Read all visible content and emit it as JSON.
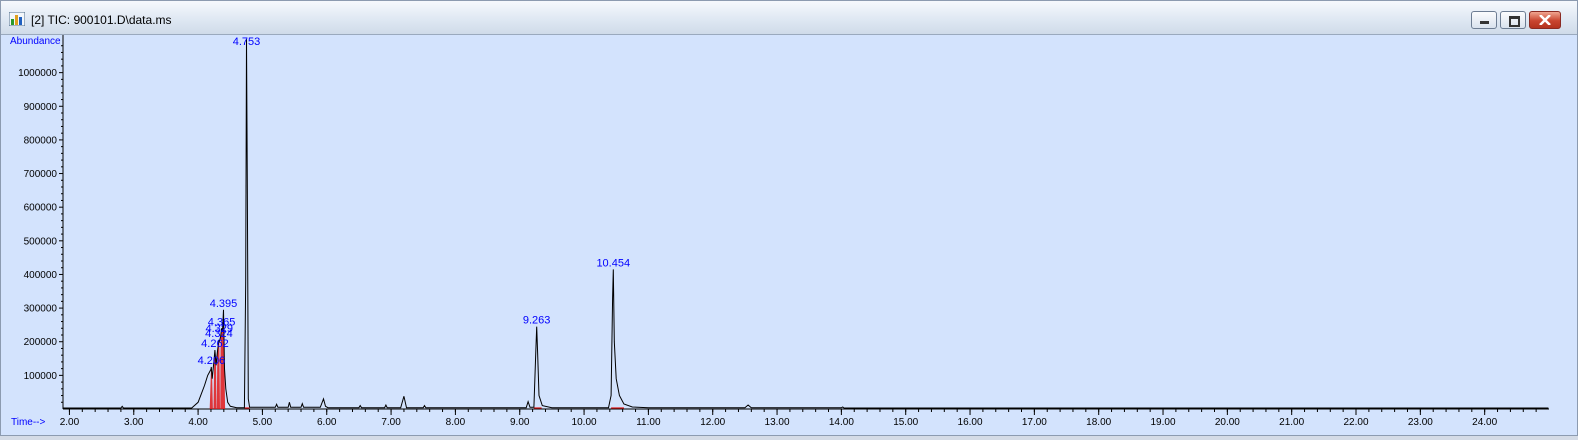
{
  "window": {
    "title": "[2] TIC: 900101.D\\data.ms",
    "icon": "chromatogram-app-icon",
    "controls": [
      "minimize-icon",
      "maximize-icon",
      "close-icon"
    ]
  },
  "colors": {
    "background": "#d3e3fd",
    "trace": "#000000",
    "axis": "#000000",
    "label": "#0000ff",
    "peak_fill": "#e01818"
  },
  "chart_data": {
    "type": "line",
    "ylabel": "Abundance",
    "xlabel": "Time-->",
    "xlim": [
      1.9,
      25.0
    ],
    "ylim": [
      0,
      1100000
    ],
    "x_ticks": [
      2.0,
      3.0,
      4.0,
      5.0,
      6.0,
      7.0,
      8.0,
      9.0,
      10.0,
      11.0,
      12.0,
      13.0,
      14.0,
      15.0,
      16.0,
      17.0,
      18.0,
      19.0,
      20.0,
      21.0,
      22.0,
      23.0,
      24.0
    ],
    "x_tick_labels": [
      "2.00",
      "3.00",
      "4.00",
      "5.00",
      "6.00",
      "7.00",
      "8.00",
      "9.00",
      "10.00",
      "11.00",
      "12.00",
      "13.00",
      "14.00",
      "15.00",
      "16.00",
      "17.00",
      "18.00",
      "19.00",
      "20.00",
      "21.00",
      "22.00",
      "23.00",
      "24.00"
    ],
    "y_ticks": [
      100000,
      200000,
      300000,
      400000,
      500000,
      600000,
      700000,
      800000,
      900000,
      1000000
    ],
    "y_tick_labels": [
      "100000",
      "200000",
      "300000",
      "400000",
      "500000",
      "600000",
      "700000",
      "800000",
      "900000",
      "1000000"
    ],
    "grid": false,
    "peaks": [
      {
        "label": "4.206",
        "rt": 4.206,
        "apex": 125000,
        "integrated": true
      },
      {
        "label": "4.262",
        "rt": 4.262,
        "apex": 175000,
        "integrated": true
      },
      {
        "label": "4.324",
        "rt": 4.324,
        "apex": 205000,
        "integrated": true
      },
      {
        "label": "4.329",
        "rt": 4.329,
        "apex": 220000,
        "integrated": true
      },
      {
        "label": "4.365",
        "rt": 4.365,
        "apex": 240000,
        "integrated": true
      },
      {
        "label": "4.395",
        "rt": 4.395,
        "apex": 295000,
        "integrated": true
      },
      {
        "label": "4.753",
        "rt": 4.753,
        "apex": 1100000,
        "integrated": true
      },
      {
        "label": "9.263",
        "rt": 9.263,
        "apex": 245000,
        "integrated": true
      },
      {
        "label": "10.454",
        "rt": 10.454,
        "apex": 415000,
        "integrated": true
      }
    ],
    "series": [
      {
        "x": [
          1.9,
          2.8,
          2.82,
          2.84,
          3.9,
          4.0,
          4.05,
          4.1,
          4.15,
          4.2,
          4.206,
          4.22,
          4.25,
          4.262,
          4.28,
          4.3,
          4.324,
          4.33,
          4.35,
          4.365,
          4.38,
          4.395,
          4.41,
          4.43,
          4.46,
          4.5,
          4.6,
          4.72,
          4.74,
          4.753,
          4.765,
          4.78,
          4.8,
          5.2,
          5.22,
          5.24,
          5.4,
          5.42,
          5.44,
          5.6,
          5.62,
          5.64,
          5.9,
          5.95,
          5.98,
          6.02,
          6.5,
          6.52,
          6.54,
          6.9,
          6.92,
          6.94,
          7.15,
          7.2,
          7.24,
          7.5,
          7.52,
          7.54,
          9.1,
          9.13,
          9.16,
          9.22,
          9.25,
          9.263,
          9.28,
          9.3,
          9.35,
          9.5,
          10.38,
          10.42,
          10.444,
          10.454,
          10.47,
          10.5,
          10.55,
          10.62,
          10.75,
          11.0,
          12.5,
          12.55,
          12.6,
          14.0,
          14.02,
          14.04,
          24.99
        ],
        "y": [
          3000,
          3000,
          8000,
          3000,
          3000,
          20000,
          45000,
          70000,
          100000,
          118000,
          125000,
          90000,
          150000,
          175000,
          130000,
          170000,
          205000,
          200000,
          215000,
          240000,
          230000,
          295000,
          120000,
          60000,
          20000,
          8000,
          4000,
          4000,
          380000,
          1100000,
          680000,
          30000,
          5000,
          5000,
          14000,
          5000,
          5000,
          20000,
          5000,
          5000,
          16000,
          5000,
          5000,
          30000,
          8000,
          4000,
          4000,
          10000,
          4000,
          4000,
          12000,
          4000,
          4000,
          38000,
          4000,
          4000,
          10000,
          3500,
          3500,
          22000,
          5000,
          5000,
          170000,
          245000,
          160000,
          40000,
          10000,
          4000,
          4000,
          40000,
          330000,
          415000,
          200000,
          90000,
          40000,
          15000,
          6000,
          3500,
          3500,
          12000,
          3500,
          3500,
          6000,
          3000,
          3000
        ]
      }
    ]
  }
}
